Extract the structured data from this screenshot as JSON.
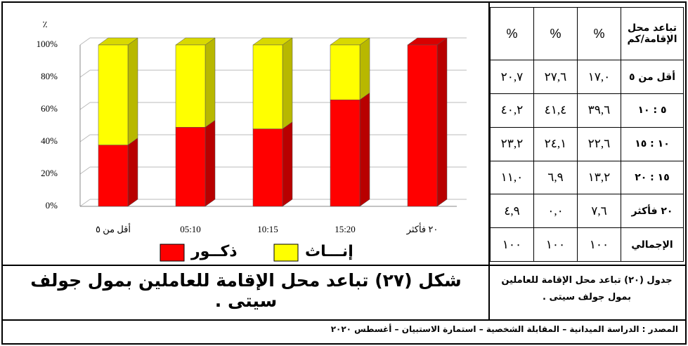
{
  "chart_data": {
    "type": "bar",
    "stacked": true,
    "y_unit": "٪",
    "categories": [
      "أقل من ٥",
      "05:10",
      "10:15",
      "15:20",
      "٢٠ فأكثر"
    ],
    "series": [
      {
        "name": "ذكــور",
        "color": "#ff0000",
        "values": [
          38,
          49,
          48,
          66,
          100
        ]
      },
      {
        "name": "إنـــاث",
        "color": "#ffff00",
        "values": [
          62,
          51,
          52,
          34,
          0
        ]
      }
    ],
    "ylim": [
      0,
      100
    ],
    "yticks": [
      {
        "value": 0,
        "label": "0%"
      },
      {
        "value": 20,
        "label": "20%"
      },
      {
        "value": 40,
        "label": "40%"
      },
      {
        "value": 60,
        "label": "60%"
      },
      {
        "value": 80,
        "label": "80%"
      },
      {
        "value": 100,
        "label": "100%"
      }
    ],
    "grid": true
  },
  "table": {
    "header": [
      "تباعد محل الإقامة/كم",
      "%",
      "%",
      "%"
    ],
    "rows": [
      [
        "أقل من ٥",
        "١٧,٠",
        "٢٧,٦",
        "٢٠,٧"
      ],
      [
        "٥ : ١٠",
        "٣٩,٦",
        "٤١,٤",
        "٤٠,٢"
      ],
      [
        "١٠ : ١٥",
        "٢٢,٦",
        "٢٤,١",
        "٢٣,٢"
      ],
      [
        "١٥ : ٢٠",
        "١٣,٢",
        "٦,٩",
        "١١,٠"
      ],
      [
        "٢٠ فأكثر",
        "٧,٦",
        "٠,٠",
        "٤,٩"
      ],
      [
        "الإجمالي",
        "١٠٠",
        "١٠٠",
        "١٠٠"
      ]
    ]
  },
  "figure_caption": "شكل (٢٧) تباعد محل الإقامة للعاملين بمول جولف سيتى .",
  "table_caption": "جدول (٢٠) تباعد محل الإقامة للعاملين بمول جولف سيتى .",
  "source": "المصدر : الدراسة الميدانية – المقابلة الشخصية – استمارة الاستبيان – أغسطس ٢٠٢٠"
}
